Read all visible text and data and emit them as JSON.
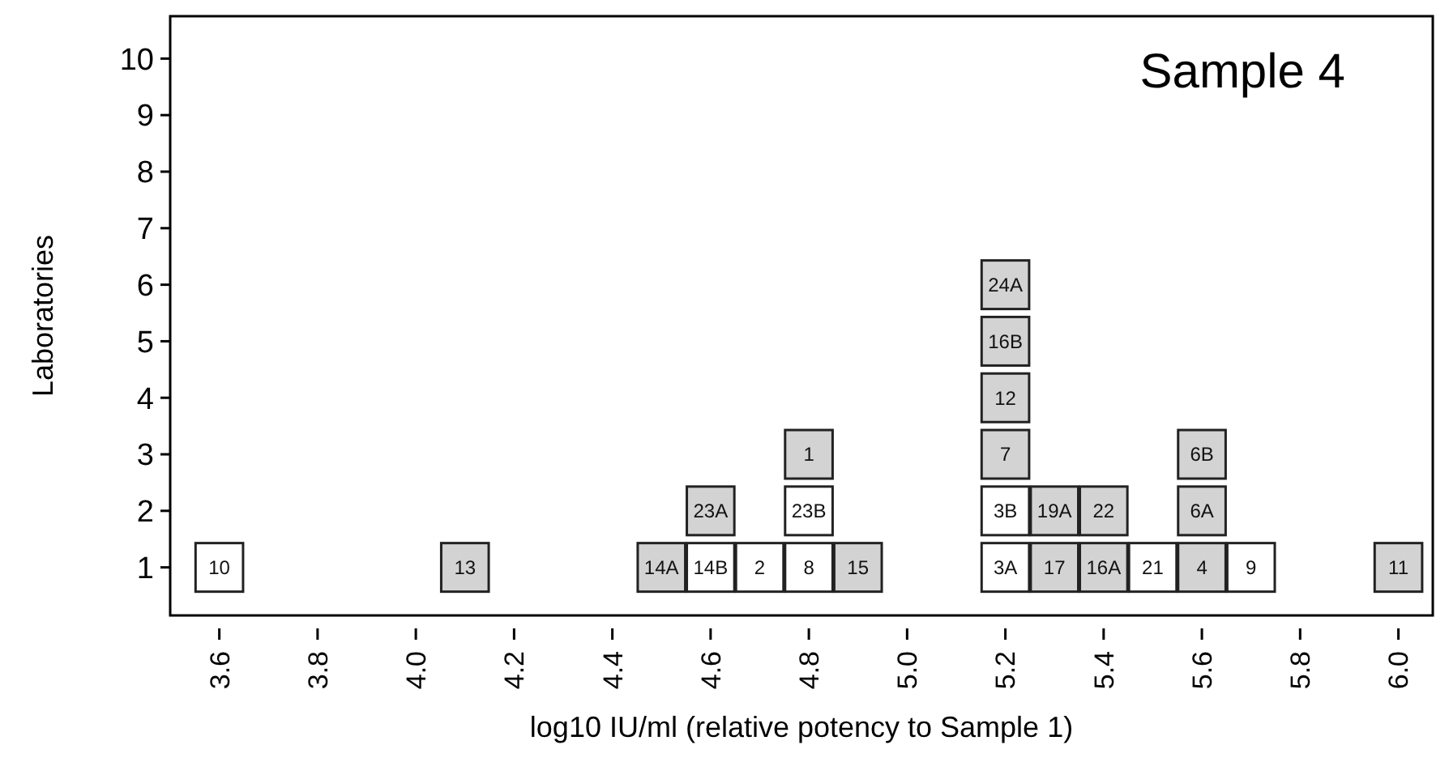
{
  "chart_data": {
    "type": "scatter",
    "title": "Sample 4",
    "xlabel": "log10 IU/ml (relative potency to Sample 1)",
    "ylabel": "Laboratories",
    "marker": "square",
    "grid": false,
    "xlim": [
      3.5,
      6.07
    ],
    "xticks": [
      {
        "value": 3.6,
        "label": "3.6"
      },
      {
        "value": 3.8,
        "label": "3.8"
      },
      {
        "value": 4.0,
        "label": "4.0"
      },
      {
        "value": 4.2,
        "label": "4.2"
      },
      {
        "value": 4.4,
        "label": "4.4"
      },
      {
        "value": 4.6,
        "label": "4.6"
      },
      {
        "value": 4.8,
        "label": "4.8"
      },
      {
        "value": 5.0,
        "label": "5.0"
      },
      {
        "value": 5.2,
        "label": "5.2"
      },
      {
        "value": 5.4,
        "label": "5.4"
      },
      {
        "value": 5.6,
        "label": "5.6"
      },
      {
        "value": 5.8,
        "label": "5.8"
      },
      {
        "value": 6.0,
        "label": "6.0"
      }
    ],
    "ylim": [
      0.15,
      10.75
    ],
    "yticks": [
      1,
      2,
      3,
      4,
      5,
      6,
      7,
      8,
      9,
      10
    ],
    "series": [
      {
        "color": "#ffffff",
        "x": [
          3.6,
          4.6,
          4.7,
          4.8,
          4.8,
          5.2,
          5.2,
          5.5,
          5.7
        ],
        "values": [
          1,
          1,
          1,
          1,
          2,
          1,
          2,
          1,
          1
        ]
      },
      {
        "color": "#d3d3d3",
        "x": [
          4.1,
          4.5,
          4.6,
          4.9,
          4.8,
          5.2,
          5.2,
          5.2,
          5.2,
          5.3,
          5.3,
          5.4,
          5.4,
          5.6,
          5.6,
          5.6,
          6.0
        ],
        "values": [
          1,
          1,
          2,
          1,
          3,
          3,
          4,
          5,
          6,
          1,
          2,
          1,
          2,
          1,
          2,
          3,
          1
        ]
      }
    ],
    "annotations": [
      {
        "text": "10",
        "x": 3.6,
        "y": 1
      },
      {
        "text": "14B",
        "x": 4.6,
        "y": 1
      },
      {
        "text": "2",
        "x": 4.7,
        "y": 1
      },
      {
        "text": "8",
        "x": 4.8,
        "y": 1
      },
      {
        "text": "23B",
        "x": 4.8,
        "y": 2
      },
      {
        "text": "3A",
        "x": 5.2,
        "y": 1
      },
      {
        "text": "3B",
        "x": 5.2,
        "y": 2
      },
      {
        "text": "21",
        "x": 5.5,
        "y": 1
      },
      {
        "text": "9",
        "x": 5.7,
        "y": 1
      },
      {
        "text": "13",
        "x": 4.1,
        "y": 1
      },
      {
        "text": "14A",
        "x": 4.5,
        "y": 1
      },
      {
        "text": "23A",
        "x": 4.6,
        "y": 2
      },
      {
        "text": "15",
        "x": 4.9,
        "y": 1
      },
      {
        "text": "1",
        "x": 4.8,
        "y": 3
      },
      {
        "text": "7",
        "x": 5.2,
        "y": 3
      },
      {
        "text": "12",
        "x": 5.2,
        "y": 4
      },
      {
        "text": "16B",
        "x": 5.2,
        "y": 5
      },
      {
        "text": "24A",
        "x": 5.2,
        "y": 6
      },
      {
        "text": "17",
        "x": 5.3,
        "y": 1
      },
      {
        "text": "19A",
        "x": 5.3,
        "y": 2
      },
      {
        "text": "16A",
        "x": 5.4,
        "y": 1
      },
      {
        "text": "22",
        "x": 5.4,
        "y": 2
      },
      {
        "text": "4",
        "x": 5.6,
        "y": 1
      },
      {
        "text": "6A",
        "x": 5.6,
        "y": 2
      },
      {
        "text": "6B",
        "x": 5.6,
        "y": 3
      },
      {
        "text": "11",
        "x": 6.0,
        "y": 1
      }
    ]
  }
}
